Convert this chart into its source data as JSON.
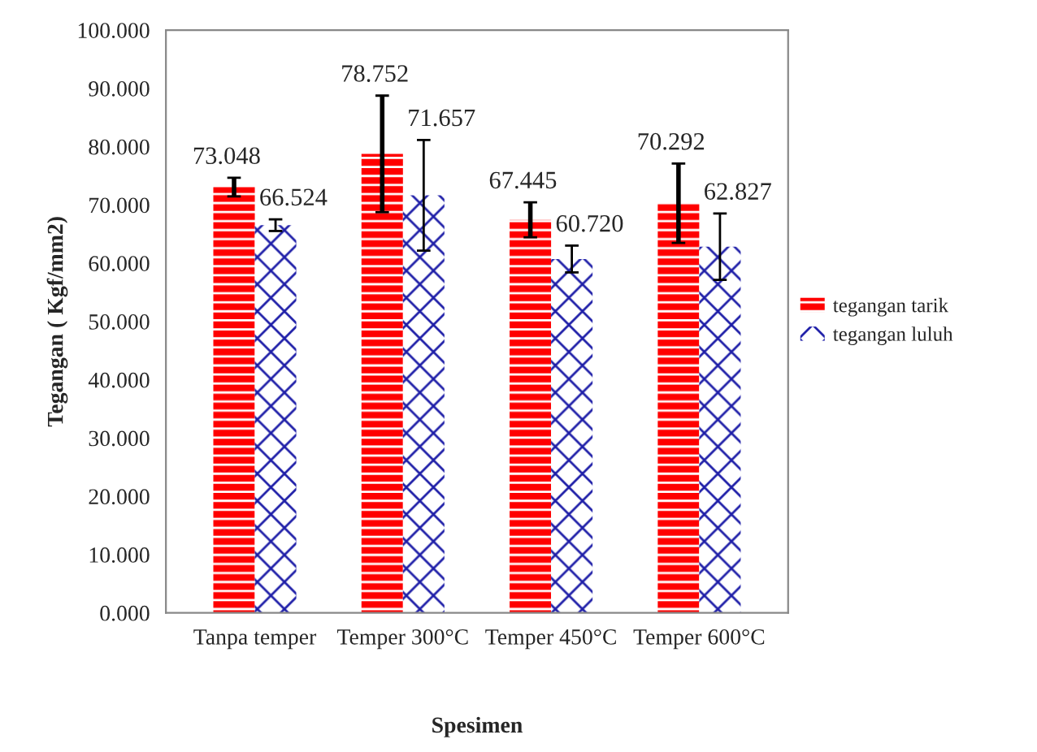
{
  "chart_data": {
    "type": "bar",
    "xlabel": "Spesimen",
    "ylabel": "Tegangan ( Kgf/mm2)",
    "categories": [
      "Tanpa temper",
      "Temper 300°C",
      "Temper 450°C",
      "Temper 600°C"
    ],
    "series": [
      {
        "name": "tegangan tarik",
        "color": "#ff0000",
        "values": [
          73.048,
          78.752,
          67.445,
          70.292
        ],
        "errors": [
          1.6,
          10.0,
          3.0,
          6.8
        ],
        "value_labels": [
          "73.048",
          "78.752",
          "67.445",
          "70.292"
        ]
      },
      {
        "name": "tegangan luluh",
        "color": "#1f1fa8",
        "values": [
          66.524,
          71.657,
          60.72,
          62.827
        ],
        "errors": [
          1.0,
          9.5,
          2.3,
          5.7
        ],
        "value_labels": [
          "66.524",
          "71.657",
          "60.720",
          "62.827"
        ]
      }
    ],
    "ylim": [
      0,
      100
    ],
    "yticks": [
      {
        "value": 0,
        "label": "0.000"
      },
      {
        "value": 10,
        "label": "10.000"
      },
      {
        "value": 20,
        "label": "20.000"
      },
      {
        "value": 30,
        "label": "30.000"
      },
      {
        "value": 40,
        "label": "40.000"
      },
      {
        "value": 50,
        "label": "50.000"
      },
      {
        "value": 60,
        "label": "60.000"
      },
      {
        "value": 70,
        "label": "70.000"
      },
      {
        "value": 80,
        "label": "80.000"
      },
      {
        "value": 90,
        "label": "90.000"
      },
      {
        "value": 100,
        "label": "100.000"
      }
    ],
    "grid": false,
    "legend": "right"
  }
}
